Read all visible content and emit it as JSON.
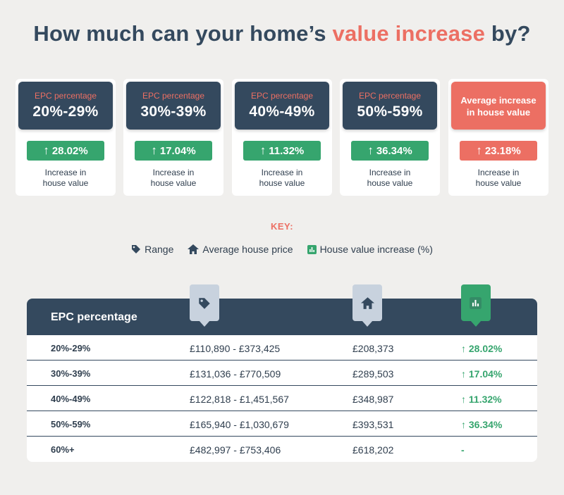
{
  "title": {
    "prefix": "How much can your home’s ",
    "accent": "value increase",
    "suffix": " by?"
  },
  "cards": [
    {
      "label": "EPC percentage",
      "range": "20%-29%",
      "increase": "28.02%",
      "footer_line1": "Increase in",
      "footer_line2": "house value"
    },
    {
      "label": "EPC percentage",
      "range": "30%-39%",
      "increase": "17.04%",
      "footer_line1": "Increase in",
      "footer_line2": "house value"
    },
    {
      "label": "EPC percentage",
      "range": "40%-49%",
      "increase": "11.32%",
      "footer_line1": "Increase in",
      "footer_line2": "house value"
    },
    {
      "label": "EPC percentage",
      "range": "50%-59%",
      "increase": "36.34%",
      "footer_line1": "Increase in",
      "footer_line2": "house value"
    }
  ],
  "average_card": {
    "heading": "Average increase in house value",
    "increase": "23.18%",
    "footer_line1": "Increase in",
    "footer_line2": "house value"
  },
  "arrow_glyph": "↑",
  "key": {
    "title": "KEY:",
    "items": [
      {
        "icon": "tag-icon",
        "label": "Range"
      },
      {
        "icon": "house-icon",
        "label": "Average house price"
      },
      {
        "icon": "bar-chart-icon",
        "label": "House value increase (%)"
      }
    ]
  },
  "table": {
    "header": "EPC percentage",
    "rows": [
      {
        "epc": "20%-29%",
        "range": "£110,890 - £373,425",
        "avg_price": "£208,373",
        "increase": "↑ 28.02%"
      },
      {
        "epc": "30%-39%",
        "range": "£131,036 - £770,509",
        "avg_price": "£289,503",
        "increase": "↑ 17.04%"
      },
      {
        "epc": "40%-49%",
        "range": "£122,818 - £1,451,567",
        "avg_price": "£348,987",
        "increase": "↑ 11.32%"
      },
      {
        "epc": "50%-59%",
        "range": "£165,940 - £1,030,679",
        "avg_price": "£393,531",
        "increase": "↑ 36.34%"
      },
      {
        "epc": "60%+",
        "range": "£482,997 - £753,406",
        "avg_price": "£618,202",
        "increase": "-"
      }
    ]
  },
  "colors": {
    "navy": "#34495e",
    "coral": "#ec6f63",
    "green": "#36a56e",
    "background": "#f0efed"
  }
}
